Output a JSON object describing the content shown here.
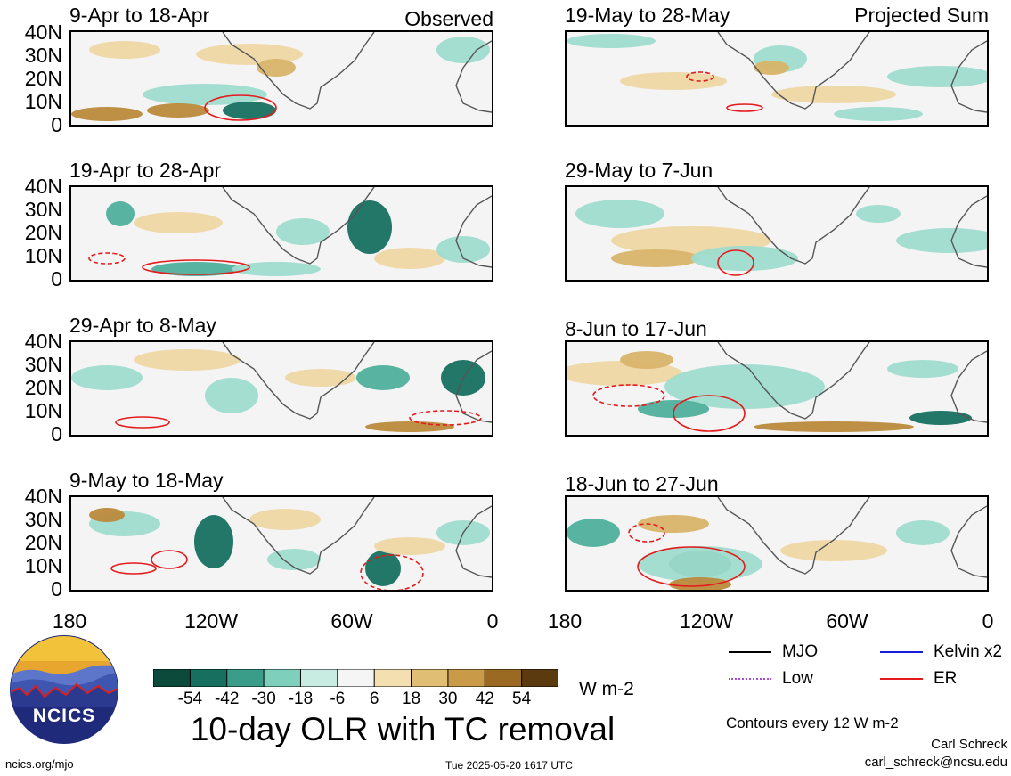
{
  "header": {
    "observed_label": "Observed",
    "projected_label": "Projected Sum"
  },
  "panels": [
    {
      "title": "9-Apr to 18-Apr"
    },
    {
      "title": "19-Apr to 28-Apr"
    },
    {
      "title": "29-Apr to 8-May"
    },
    {
      "title": "9-May to 18-May"
    },
    {
      "title": "19-May to 28-May"
    },
    {
      "title": "29-May to 7-Jun"
    },
    {
      "title": "8-Jun to 17-Jun"
    },
    {
      "title": "18-Jun to 27-Jun"
    }
  ],
  "axes": {
    "lat_labels": [
      "40N",
      "30N",
      "20N",
      "10N",
      "0"
    ],
    "lon_labels": [
      "180",
      "120W",
      "60W",
      "0"
    ]
  },
  "colorbar": {
    "labels": [
      "-54",
      "-42",
      "-30",
      "-18",
      "-6",
      "6",
      "18",
      "30",
      "42",
      "54"
    ],
    "colors": [
      "#0c4a3b",
      "#17705f",
      "#3a9d8a",
      "#7fcfbd",
      "#c9ece2",
      "#f5f5f5",
      "#f3dfb0",
      "#e0bf75",
      "#c99a48",
      "#9b6a22",
      "#5a3a0e"
    ],
    "unit": "W m-2"
  },
  "legend": {
    "items": [
      {
        "label": "MJO",
        "color": "#000000"
      },
      {
        "label": "Kelvin x2",
        "color": "#1a1adb"
      },
      {
        "label": "Low",
        "color": "#a64fd6"
      },
      {
        "label": "ER",
        "color": "#e41a1c"
      }
    ],
    "contours_note": "Contours every 12 W m-2"
  },
  "logo": {
    "text": "NCICS"
  },
  "main_title": "10-day OLR with TC removal",
  "footer": {
    "url": "ncics.org/mjo",
    "timestamp": "Tue 2025-05-20 1617 UTC",
    "author": "Carl Schreck",
    "email": "carl_schreck@ncsu.edu"
  }
}
